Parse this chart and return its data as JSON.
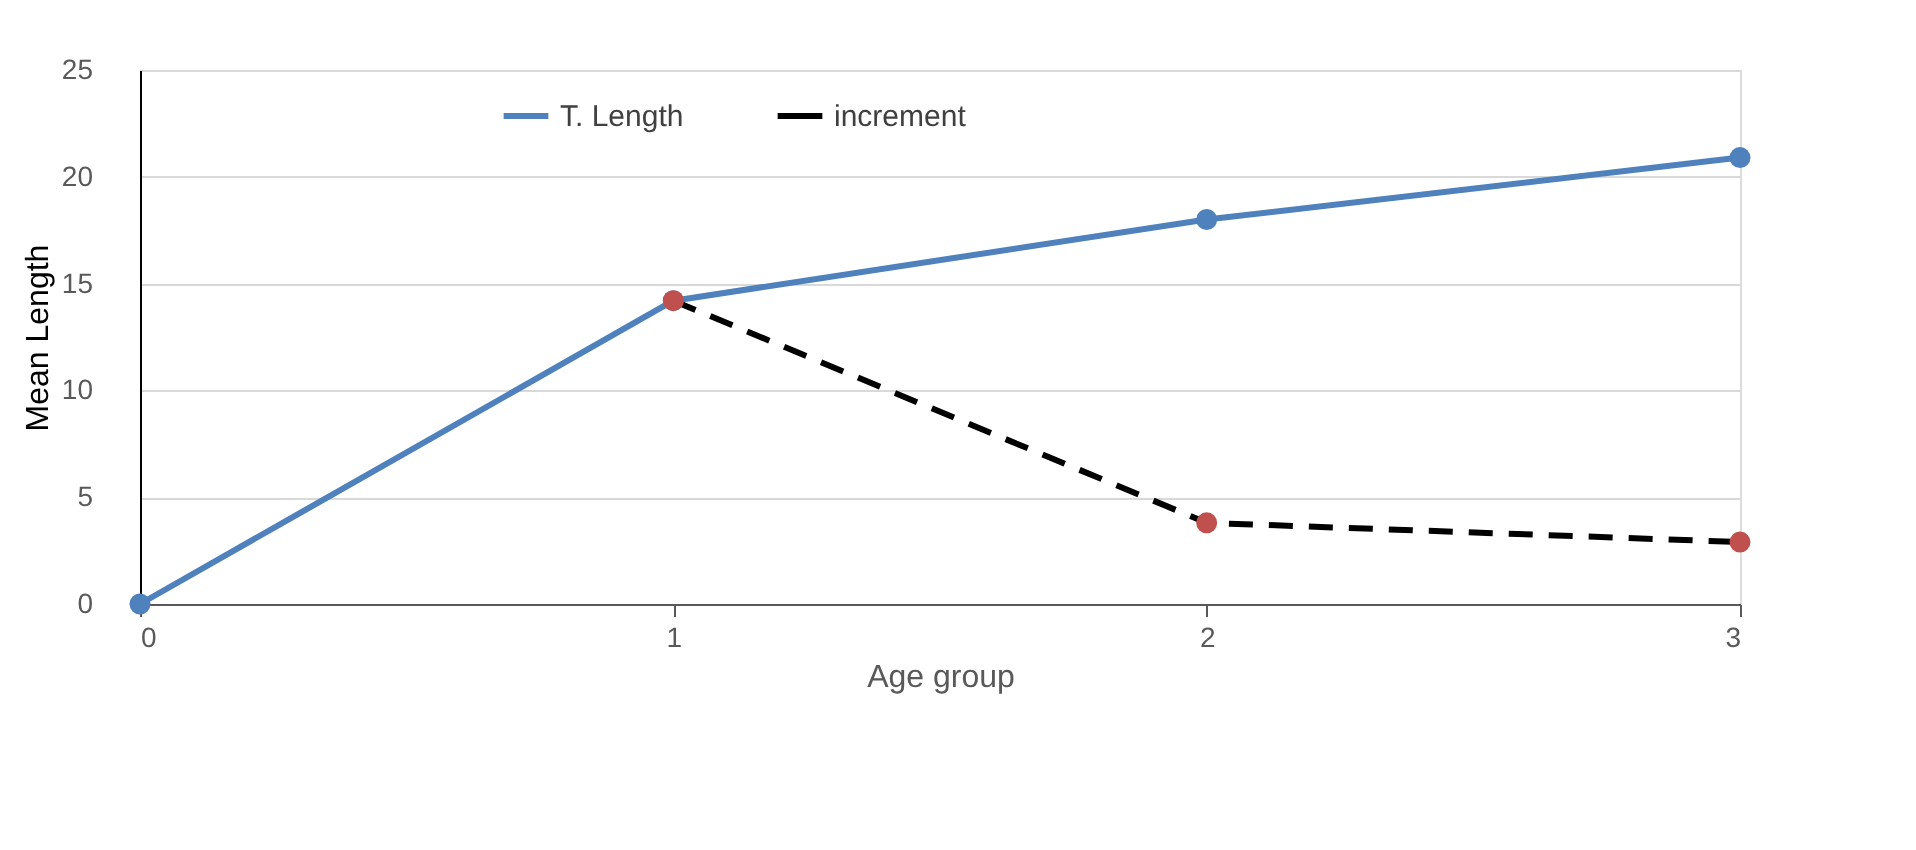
{
  "chart_data": {
    "type": "line",
    "xlabel": "Age group",
    "ylabel": "Mean Length",
    "xlim": [
      0,
      3
    ],
    "xticks": [
      0,
      1,
      2,
      3
    ],
    "ylim": [
      0,
      25
    ],
    "yticks": [
      0,
      5,
      10,
      15,
      20,
      25
    ],
    "grid": "y",
    "legend": "top",
    "marker": "circle",
    "series": [
      {
        "name": "T. Length",
        "color": "#4f81bd",
        "line_style": "solid",
        "x": [
          0,
          1,
          2,
          3
        ],
        "values": [
          0,
          14.2,
          18.0,
          20.9
        ]
      },
      {
        "name": "increment",
        "color": "#000000",
        "colors": [
          "#c0504d",
          "#c0504d",
          "#c0504d"
        ],
        "line_style": "dashed",
        "x": [
          1,
          2,
          3
        ],
        "values": [
          14.2,
          3.8,
          2.9
        ]
      }
    ]
  }
}
